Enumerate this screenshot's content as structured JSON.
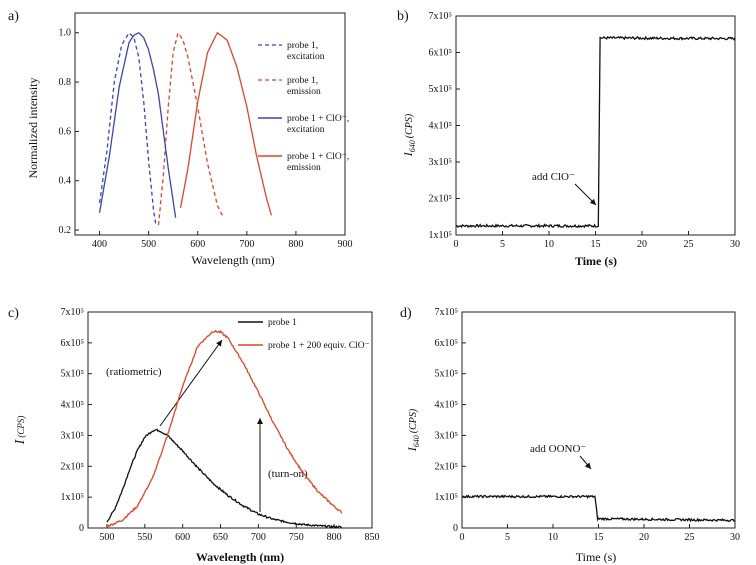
{
  "chart_data": [
    {
      "panel": "a)",
      "type": "line",
      "xlabel": "Wavelength (nm)",
      "ylabel": "Normalized  intensity",
      "xlim": [
        350,
        900
      ],
      "ylim": [
        0.18,
        1.08
      ],
      "xticks": [
        400,
        500,
        600,
        700,
        800,
        900
      ],
      "yticks": [
        0.2,
        0.4,
        0.6,
        0.8,
        1.0
      ],
      "series": [
        {
          "name": "probe 1, excitation",
          "color": "#3a46b0",
          "dash": true,
          "x": [
            400,
            415,
            430,
            445,
            460,
            470,
            480,
            490,
            500,
            510,
            515
          ],
          "y": [
            0.31,
            0.52,
            0.8,
            0.95,
            1.0,
            0.98,
            0.9,
            0.72,
            0.48,
            0.28,
            0.22
          ]
        },
        {
          "name": "probe 1, emission",
          "color": "#e0442a",
          "dash": true,
          "x": [
            520,
            530,
            540,
            550,
            560,
            570,
            580,
            600,
            620,
            640,
            650
          ],
          "y": [
            0.22,
            0.42,
            0.7,
            0.92,
            1.0,
            0.97,
            0.9,
            0.7,
            0.47,
            0.3,
            0.26
          ]
        },
        {
          "name": "probe 1 + ClO⁻, excitation",
          "color": "#3a46b0",
          "dash": false,
          "x": [
            400,
            420,
            440,
            460,
            470,
            480,
            490,
            500,
            510,
            520,
            540,
            555
          ],
          "y": [
            0.27,
            0.5,
            0.78,
            0.96,
            0.99,
            1.0,
            0.98,
            0.93,
            0.85,
            0.75,
            0.45,
            0.25
          ]
        },
        {
          "name": "probe 1 + ClO⁻, emission",
          "color": "#e0442a",
          "dash": false,
          "x": [
            565,
            580,
            600,
            620,
            640,
            660,
            680,
            700,
            720,
            740,
            750
          ],
          "y": [
            0.29,
            0.45,
            0.72,
            0.92,
            1.0,
            0.97,
            0.86,
            0.7,
            0.5,
            0.33,
            0.26
          ]
        }
      ]
    },
    {
      "panel": "b)",
      "type": "line",
      "xlabel": "Time (s)",
      "ylabel": "I640 (CPS)",
      "xlim": [
        0,
        30
      ],
      "ylim": [
        100000,
        700000
      ],
      "xticks": [
        0,
        5,
        10,
        15,
        20,
        25,
        30
      ],
      "ytick_values": [
        100000,
        200000,
        300000,
        400000,
        500000,
        600000,
        700000
      ],
      "ytick_labels": [
        "1x10⁵",
        "2x10⁵",
        "3x10⁵",
        "4x10⁵",
        "5x10⁵",
        "6x10⁵",
        "7x10⁵"
      ],
      "series": [
        {
          "name": "",
          "color": "#111111",
          "x": [
            0,
            15.3,
            15.5,
            30
          ],
          "y": [
            125000,
            125000,
            640000,
            638000
          ]
        }
      ],
      "annotation": "add ClO⁻"
    },
    {
      "panel": "c)",
      "type": "line",
      "xlabel": "Wavelength (nm)",
      "ylabel": "I (CPS)",
      "xlim": [
        475,
        850
      ],
      "ylim": [
        0,
        700000
      ],
      "xticks": [
        500,
        550,
        600,
        650,
        700,
        750,
        800,
        850
      ],
      "ytick_values": [
        0,
        100000,
        200000,
        300000,
        400000,
        500000,
        600000,
        700000
      ],
      "ytick_labels": [
        "0",
        "1x10⁵",
        "2x10⁵",
        "3x10⁵",
        "4x10⁵",
        "5x10⁵",
        "6x10⁵",
        "7x10⁵"
      ],
      "series": [
        {
          "name": "probe 1",
          "color": "#111111",
          "x": [
            500,
            510,
            520,
            530,
            540,
            550,
            560,
            565,
            570,
            580,
            600,
            620,
            640,
            660,
            680,
            700,
            720,
            740,
            760,
            780,
            800,
            810
          ],
          "y": [
            20000,
            60000,
            120000,
            190000,
            250000,
            295000,
            315000,
            318000,
            315000,
            300000,
            250000,
            195000,
            145000,
            105000,
            72000,
            45000,
            28000,
            18000,
            11000,
            7000,
            4000,
            3000
          ]
        },
        {
          "name": "probe 1 + 200 equiv. ClO⁻",
          "color": "#e0442a",
          "x": [
            500,
            520,
            540,
            560,
            580,
            600,
            620,
            640,
            650,
            660,
            680,
            700,
            720,
            740,
            760,
            780,
            800,
            810
          ],
          "y": [
            5000,
            25000,
            70000,
            160000,
            300000,
            460000,
            590000,
            638000,
            635000,
            615000,
            535000,
            440000,
            340000,
            250000,
            175000,
            115000,
            70000,
            50000
          ]
        }
      ],
      "annotations": [
        "(ratiometric)",
        "(turn-on)"
      ]
    },
    {
      "panel": "d)",
      "type": "line",
      "xlabel": "Time (s)",
      "ylabel": "I640 (CPS)",
      "xlim": [
        0,
        30
      ],
      "ylim": [
        0,
        700000
      ],
      "xticks": [
        0,
        5,
        10,
        15,
        20,
        25,
        30
      ],
      "ytick_values": [
        0,
        100000,
        200000,
        300000,
        400000,
        500000,
        600000,
        700000
      ],
      "ytick_labels": [
        "0",
        "1x10⁵",
        "2x10⁵",
        "3x10⁵",
        "4x10⁵",
        "5x10⁵",
        "6x10⁵",
        "7x10⁵"
      ],
      "series": [
        {
          "name": "",
          "color": "#111111",
          "x": [
            0,
            14.6,
            14.9,
            30
          ],
          "y": [
            102000,
            102000,
            30000,
            25000
          ]
        }
      ],
      "annotation": "add OONO⁻"
    }
  ],
  "panels": {
    "a": {
      "label": "a)",
      "ylabel": "Normalized  intensity",
      "xlabel": "Wavelength (nm)",
      "legend": [
        {
          "l1": "probe 1,",
          "l2": "excitation"
        },
        {
          "l1": "probe 1,",
          "l2": "emission"
        },
        {
          "l1": "probe 1 + ClO⁻,",
          "l2": "excitation"
        },
        {
          "l1": "probe 1 + ClO⁻,",
          "l2": "emission"
        }
      ]
    },
    "b": {
      "label": "b)",
      "ylabel_main": "I",
      "ylabel_sub": "640",
      "ylabel_unit": "(CPS)",
      "xlabel": "Time (s)",
      "annotation": "add ClO⁻"
    },
    "c": {
      "label": "c)",
      "ylabel_main": "I",
      "ylabel_unit": "(CPS)",
      "xlabel": "Wavelength (nm)",
      "legend1": "probe 1",
      "legend2": "probe 1 + 200 equiv. ClO⁻",
      "ann1": "(ratiometric)",
      "ann2": "(turn-on)"
    },
    "d": {
      "label": "d)",
      "ylabel_main": "I",
      "ylabel_sub": "640",
      "ylabel_unit": "(CPS)",
      "xlabel": "Time (s)",
      "annotation": "add OONO⁻"
    }
  }
}
